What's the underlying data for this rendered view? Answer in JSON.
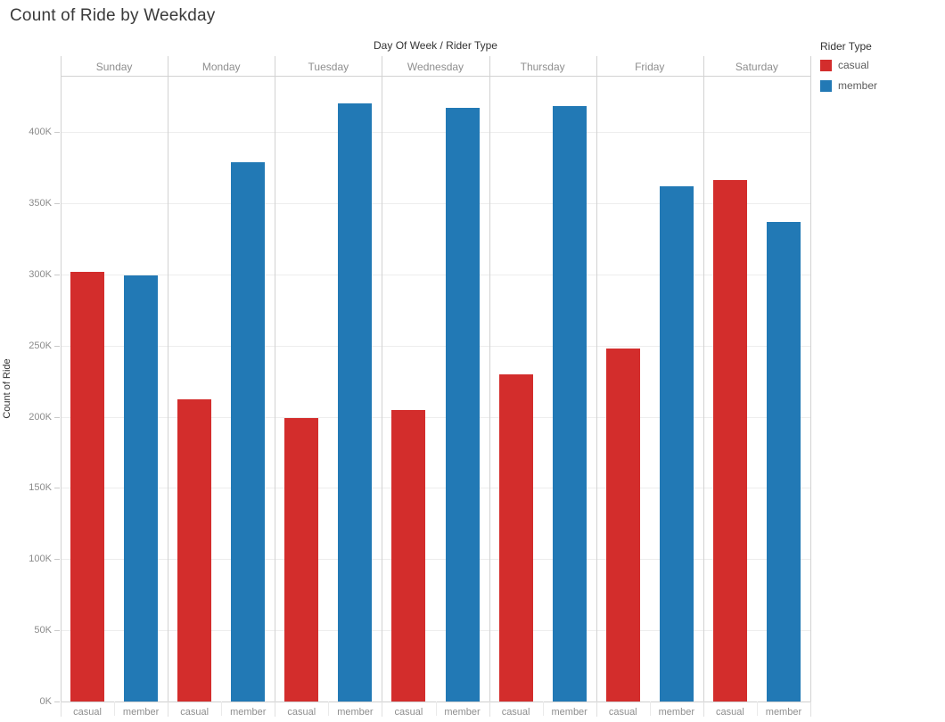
{
  "title": "Count of Ride by Weekday",
  "column_header": "Day Of Week / Rider Type",
  "legend": {
    "title": "Rider Type",
    "items": [
      {
        "label": "casual",
        "color": "#d32d2c"
      },
      {
        "label": "member",
        "color": "#2279b5"
      }
    ]
  },
  "colors": {
    "casual": "#d32d2c",
    "member": "#2279b5",
    "title_text": "#3a3a3a",
    "header_text": "#333333",
    "muted_text": "#8e8e8e",
    "gridline": "#ededed",
    "panel_line": "#d2d2d2"
  },
  "chart_data": {
    "type": "bar",
    "title": "Count of Ride by Weekday",
    "categories": [
      "Sunday",
      "Monday",
      "Tuesday",
      "Wednesday",
      "Thursday",
      "Friday",
      "Saturday"
    ],
    "sub_categories": [
      "casual",
      "member"
    ],
    "series": [
      {
        "name": "casual",
        "color": "#d32d2c",
        "values": [
          302000,
          212000,
          199000,
          205000,
          230000,
          248000,
          366000
        ]
      },
      {
        "name": "member",
        "color": "#2279b5",
        "values": [
          299000,
          379000,
          420000,
          417000,
          418000,
          362000,
          337000
        ]
      }
    ],
    "xlabel": "Day Of Week / Rider Type",
    "ylabel": "Count of Ride",
    "yticks": [
      0,
      50000,
      100000,
      150000,
      200000,
      250000,
      300000,
      350000,
      400000
    ],
    "ytick_labels": [
      "0K",
      "50K",
      "100K",
      "150K",
      "200K",
      "250K",
      "300K",
      "350K",
      "400K"
    ],
    "ylim": [
      0,
      440000
    ],
    "grid": true,
    "legend_position": "top-right",
    "legend_title": "Rider Type"
  }
}
